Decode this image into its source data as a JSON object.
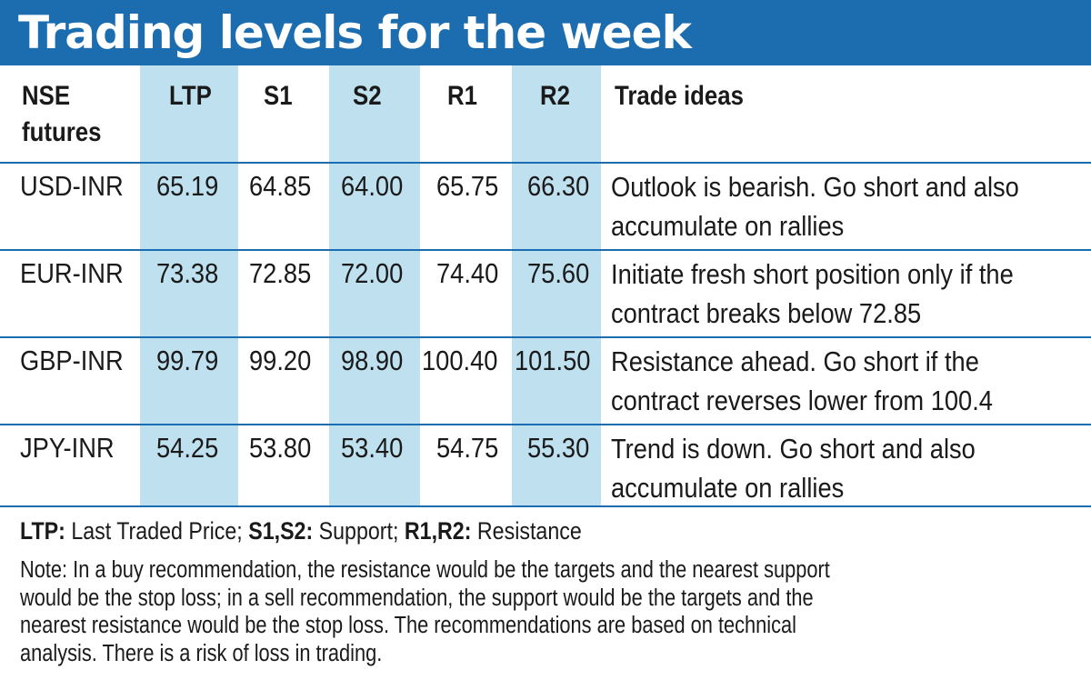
{
  "title": "Trading levels for the week",
  "colors": {
    "title_bar": "#1c6db0",
    "highlight_column": "#bfe1ef",
    "rule": "#1c6db0"
  },
  "table": {
    "headers": {
      "instrument_line1": "NSE",
      "instrument_line2": "futures",
      "ltp": "LTP",
      "s1": "S1",
      "s2": "S2",
      "r1": "R1",
      "r2": "R2",
      "ideas": "Trade ideas"
    },
    "rows": [
      {
        "pair": "USD-INR",
        "ltp": "65.19",
        "s1": "64.85",
        "s2": "64.00",
        "r1": "65.75",
        "r2": "66.30",
        "idea_line1": "Outlook is bearish. Go short and also",
        "idea_line2": "accumulate on rallies"
      },
      {
        "pair": "EUR-INR",
        "ltp": "73.38",
        "s1": "72.85",
        "s2": "72.00",
        "r1": "74.40",
        "r2": "75.60",
        "idea_line1": "Initiate fresh short position only if the",
        "idea_line2": "contract breaks below 72.85"
      },
      {
        "pair": "GBP-INR",
        "ltp": "99.79",
        "s1": "99.20",
        "s2": "98.90",
        "r1": "100.40",
        "r2": "101.50",
        "idea_line1": "Resistance ahead. Go short if the",
        "idea_line2": "contract reverses lower from 100.4"
      },
      {
        "pair": "JPY-INR",
        "ltp": "54.25",
        "s1": "53.80",
        "s2": "53.40",
        "r1": "54.75",
        "r2": "55.30",
        "idea_line1": "Trend is down. Go short and also",
        "idea_line2": "accumulate on rallies"
      }
    ]
  },
  "legend": {
    "ltp_term": "LTP:",
    "ltp_desc": " Last Traded Price; ",
    "s_term": "S1,S2:",
    "s_desc": " Support; ",
    "r_term": "R1,R2:",
    "r_desc": " Resistance"
  },
  "note": {
    "line1": "Note: In a buy recommendation, the resistance would be the targets and the nearest support",
    "line2": "would be the stop loss; in a sell recommendation, the support would be the targets and the",
    "line3": "nearest resistance would be the stop loss. The recommendations are based on technical",
    "line4": "analysis. There is a risk of loss in trading."
  }
}
